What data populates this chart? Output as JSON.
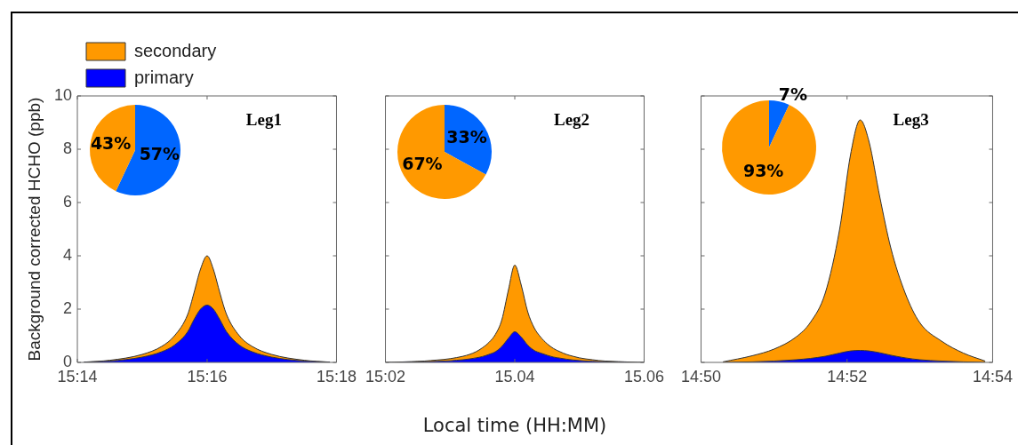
{
  "chart_data": [
    {
      "type": "area",
      "stacked": true,
      "ylabel": "Background corrected HCHO (ppb)",
      "legend": "top left",
      "annotations": [
        "Leg1"
      ],
      "x": [
        15.235,
        15.2417,
        15.25,
        15.255,
        15.2583,
        15.2617,
        15.2633,
        15.265,
        15.2667,
        15.2683,
        15.27,
        15.2717,
        15.275,
        15.2783,
        15.2833,
        15.2917,
        15.2983
      ],
      "series": [
        {
          "name": "primary",
          "color": "#0000ff",
          "values": [
            0.01,
            0.05,
            0.2,
            0.4,
            0.65,
            1.15,
            1.6,
            2.0,
            2.15,
            2.0,
            1.6,
            1.15,
            0.65,
            0.4,
            0.2,
            0.05,
            0.01
          ]
        },
        {
          "name": "secondary",
          "color": "#ff9900",
          "values": [
            0,
            0.03,
            0.1,
            0.2,
            0.35,
            0.65,
            1.0,
            1.5,
            1.85,
            1.5,
            1.0,
            0.65,
            0.35,
            0.2,
            0.1,
            0.03,
            0
          ]
        }
      ],
      "xlim": [
        15.2333,
        15.3
      ],
      "xticks": [
        {
          "value": 15.2333,
          "label": "15:14"
        },
        {
          "value": 15.2667,
          "label": "15:16"
        },
        {
          "value": 15.3,
          "label": "15:18"
        }
      ],
      "ylim": [
        0,
        10
      ],
      "yticks": [
        0,
        2,
        4,
        6,
        8,
        10
      ]
    },
    {
      "type": "pie",
      "categories": [
        null,
        null
      ],
      "values": [
        57,
        43
      ],
      "colors": [
        "#0066ff",
        "#ff9900"
      ],
      "value_labels": [
        "57%",
        "43%"
      ]
    },
    {
      "type": "area",
      "stacked": true,
      "xlabel": "Local time (HH:MM)",
      "annotations": [
        "Leg2"
      ],
      "tick_labels": "x",
      "categories": [
        "15:02",
        null,
        null,
        null,
        null,
        null,
        null,
        null,
        null,
        null,
        null,
        null,
        null,
        null,
        null,
        null,
        null,
        null,
        null,
        null,
        "15.04",
        null,
        null,
        null,
        null,
        null,
        null,
        null,
        null,
        null,
        null,
        null,
        null,
        null,
        null,
        null,
        null,
        null,
        null,
        null,
        "15.06"
      ],
      "series": [
        {
          "color": "#0000ff",
          "values": [
            0,
            0,
            0,
            0.01,
            0.01,
            0.02,
            0.02,
            0.03,
            0.04,
            0.05,
            0.06,
            0.08,
            0.1,
            0.13,
            0.17,
            0.22,
            0.3,
            0.4,
            0.6,
            0.9,
            1.15,
            0.95,
            0.65,
            0.45,
            0.35,
            0.27,
            0.2,
            0.16,
            0.12,
            0.09,
            0.07,
            0.05,
            0.04,
            0.03,
            0.02,
            0.02,
            0.01,
            0.01,
            0,
            0,
            0
          ]
        },
        {
          "color": "#ff9900",
          "values": [
            0,
            0,
            0.01,
            0.01,
            0.02,
            0.02,
            0.03,
            0.04,
            0.05,
            0.06,
            0.08,
            0.1,
            0.13,
            0.17,
            0.23,
            0.33,
            0.45,
            0.65,
            1.0,
            1.8,
            2.5,
            1.95,
            1.25,
            0.85,
            0.6,
            0.43,
            0.32,
            0.24,
            0.18,
            0.14,
            0.1,
            0.08,
            0.06,
            0.04,
            0.03,
            0.02,
            0.02,
            0.01,
            0.01,
            0,
            0
          ]
        }
      ],
      "ylim": [
        0,
        10
      ],
      "yticks": [
        0,
        2,
        4,
        6,
        8,
        10
      ]
    },
    {
      "type": "pie",
      "categories": [
        null,
        null
      ],
      "values": [
        33,
        67
      ],
      "colors": [
        "#0066ff",
        "#ff9900"
      ],
      "value_labels": [
        "33%",
        "67%"
      ]
    },
    {
      "type": "area",
      "stacked": true,
      "annotations": [
        "Leg3"
      ],
      "tick_labels": "x",
      "x": [
        14.8383,
        14.845,
        14.85,
        14.855,
        14.8583,
        14.8617,
        14.865,
        14.8675,
        14.8697,
        14.8717,
        14.8742,
        14.8767,
        14.88,
        14.8833,
        14.8883,
        14.8933,
        14.8983
      ],
      "series": [
        {
          "color": "#0000ff",
          "values": [
            0.0,
            0.02,
            0.05,
            0.1,
            0.15,
            0.23,
            0.35,
            0.43,
            0.45,
            0.43,
            0.36,
            0.27,
            0.17,
            0.1,
            0.05,
            0.02,
            0.0
          ]
        },
        {
          "color": "#ff9900",
          "values": [
            0.02,
            0.23,
            0.45,
            0.85,
            1.35,
            2.37,
            4.65,
            7.37,
            8.65,
            7.87,
            5.84,
            4.03,
            2.43,
            1.4,
            0.75,
            0.33,
            0.05
          ]
        }
      ],
      "xlim": [
        14.8333,
        14.9
      ],
      "xticks": [
        {
          "value": 14.8333,
          "label": "14:50"
        },
        {
          "value": 14.8667,
          "label": "14:52"
        },
        {
          "value": 14.9,
          "label": "14:54"
        }
      ],
      "ylim": [
        0,
        10
      ],
      "yticks": [
        0,
        2,
        4,
        6,
        8,
        10
      ]
    },
    {
      "type": "pie",
      "categories": [
        null,
        null
      ],
      "values": [
        7,
        93
      ],
      "colors": [
        "#0066ff",
        "#ff9900"
      ],
      "value_labels": [
        "7%",
        "93%"
      ]
    }
  ]
}
